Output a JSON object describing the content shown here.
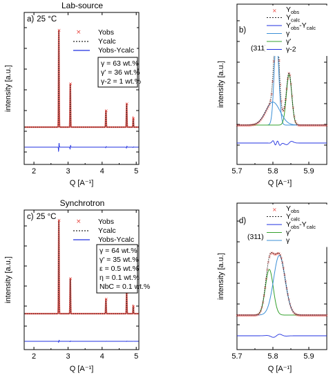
{
  "colors": {
    "obs": "#e8413a",
    "calc": "#222222",
    "diff": "#1f2fe0",
    "gamma": "#3b8fd6",
    "gamma_prime": "#33a02c",
    "gamma2": "#1f2fe0"
  },
  "chart_data": [
    {
      "id": "a",
      "type": "line",
      "title": "Lab-source",
      "panel_label": "a)",
      "temperature": "25 °C",
      "xlabel": "Q [A⁻¹]",
      "ylabel": "intensity [a.u.]",
      "xlim": [
        1.6,
        6.3
      ],
      "xticks": [
        "2",
        "3",
        "4",
        "5",
        "6"
      ],
      "legend": [
        "Yobs",
        "Ycalc",
        "Yobs-Ycalc"
      ],
      "phase_box": [
        "γ = 63 wt.%",
        "γ' = 36 wt.%",
        "γ-2 = 1 wt.%"
      ],
      "peaks": [
        {
          "q": 3.02,
          "height": 0.98
        },
        {
          "q": 3.49,
          "height": 0.44
        },
        {
          "q": 4.95,
          "height": 0.17
        },
        {
          "q": 5.8,
          "height": 0.24
        },
        {
          "q": 6.07,
          "height": 0.09
        }
      ]
    },
    {
      "id": "b",
      "type": "line",
      "panel_label": "b)",
      "peak_label": "(311)",
      "xlabel": "Q [A⁻¹]",
      "ylabel": "intensity [a.u.]",
      "xlim": [
        5.7,
        5.95
      ],
      "xticks": [
        "5.7",
        "5.8",
        "5.9"
      ],
      "legend": [
        {
          "base": "Y",
          "sub": "obs"
        },
        {
          "base": "Y",
          "sub": "calc"
        },
        {
          "base": "Y",
          "sub": "obs",
          "tail": "-Y",
          "sub2": "calc"
        },
        {
          "base": "γ"
        },
        {
          "base": "γ'"
        },
        {
          "base": "γ-2"
        }
      ],
      "components": [
        {
          "name": "γ",
          "center": 5.81,
          "height": 0.95
        },
        {
          "name": "γ'",
          "center": 5.845,
          "height": 0.55
        },
        {
          "name": "γ-2",
          "center": 5.8,
          "height": 0.25
        }
      ]
    },
    {
      "id": "c",
      "type": "line",
      "title": "Synchrotron",
      "panel_label": "c)",
      "temperature": "25 °C",
      "xlabel": "Q [A⁻¹]",
      "ylabel": "intensity [a.u.]",
      "xlim": [
        1.6,
        6.3
      ],
      "xticks": [
        "2",
        "3",
        "4",
        "5",
        "6"
      ],
      "legend": [
        "Yobs",
        "Ycalc",
        "Yobs-Ycalc"
      ],
      "phase_box": [
        "γ = 64 wt.%",
        "γ' = 35 wt.%",
        "ε = 0.5 wt.%",
        "η = 0.1 wt.%",
        "NbC = 0.1 wt.%"
      ],
      "peaks": [
        {
          "q": 3.02,
          "height": 1.0
        },
        {
          "q": 3.49,
          "height": 0.38
        },
        {
          "q": 4.95,
          "height": 0.16
        },
        {
          "q": 5.8,
          "height": 0.23
        },
        {
          "q": 6.07,
          "height": 0.08
        }
      ]
    },
    {
      "id": "d",
      "type": "line",
      "panel_label": "d)",
      "peak_label": "(311)",
      "xlabel": "Q [A⁻¹]",
      "ylabel": "intensity [a.u.]",
      "xlim": [
        5.7,
        5.95
      ],
      "xticks": [
        "5.7",
        "5.8",
        "5.9"
      ],
      "legend": [
        {
          "base": "Y",
          "sub": "obs"
        },
        {
          "base": "Y",
          "sub": "calc"
        },
        {
          "base": "Y",
          "sub": "obs",
          "tail": "-Y",
          "sub2": "calc"
        },
        {
          "base": "γ'"
        },
        {
          "base": "γ"
        }
      ],
      "components": [
        {
          "name": "γ'",
          "center": 5.79,
          "height": 0.55
        },
        {
          "name": "γ",
          "center": 5.818,
          "height": 0.72
        }
      ]
    }
  ]
}
